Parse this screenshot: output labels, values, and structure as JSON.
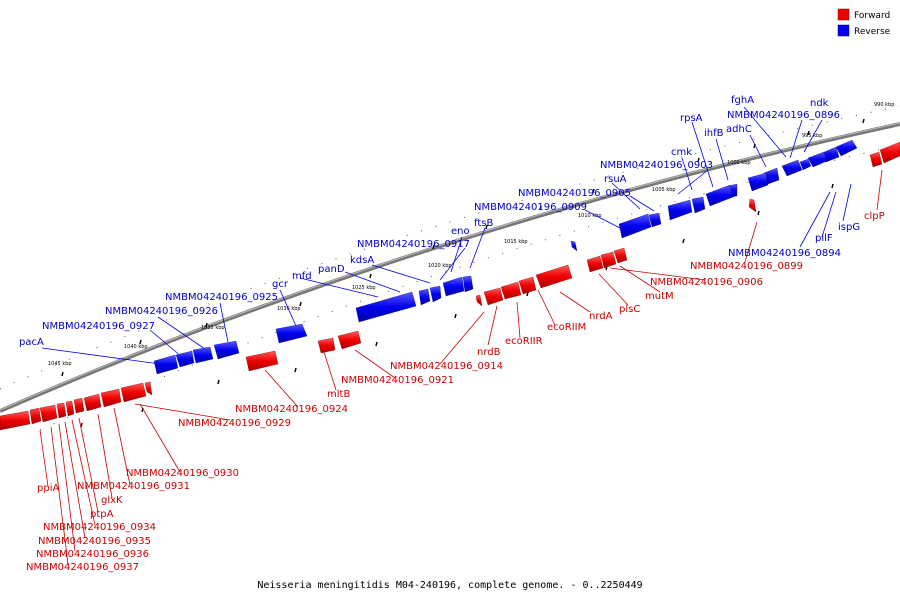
{
  "caption": "Neisseria meningitidis M04-240196, complete genome. - 0..2250449",
  "legend": [
    {
      "label": "Forward",
      "color": "#ee0000"
    },
    {
      "label": "Reverse",
      "color": "#0000ee"
    }
  ],
  "colors": {
    "forward": "#ee0000",
    "reverse": "#0000ee",
    "backbone": "#888888"
  },
  "scale_labels": [
    "990 kbp",
    "995 kbp",
    "1000 kbp",
    "1005 kbp",
    "1010 kbp",
    "1015 kbp",
    "1020 kbp",
    "1025 kbp",
    "1030 kbp",
    "1035 kbp",
    "1040 kbp",
    "1045 kbp"
  ],
  "reverse_genes": [
    "ndk",
    "NMBM04240196_0896",
    "fghA",
    "adhC",
    "ihfB",
    "rpsA",
    "cmk",
    "NMBM04240196_0903",
    "rsuA",
    "NMBM04240196_0905",
    "NMBM04240196_0909",
    "ftsB",
    "eno",
    "NMBM04240196_0917",
    "kdsA",
    "panD",
    "mfd",
    "gcr",
    "NMBM04240196_0925",
    "NMBM04240196_0926",
    "NMBM04240196_0927",
    "pacA",
    "pilF",
    "ispG",
    "NMBM04240196_0894"
  ],
  "forward_genes": [
    "clpP",
    "NMBM04240196_0899",
    "NMBM04240196_0906",
    "mutM",
    "plsC",
    "nrdA",
    "ecoRIIM",
    "ecoRIIR",
    "nrdB",
    "NMBM04240196_0914",
    "NMBM04240196_0921",
    "mltB",
    "NMBM04240196_0924",
    "NMBM04240196_0929",
    "NMBM04240196_0930",
    "NMBM04240196_0931",
    "glxK",
    "ptpA",
    "ppiA",
    "NMBM04240196_0934",
    "NMBM04240196_0935",
    "NMBM04240196_0936",
    "NMBM04240196_0937"
  ]
}
